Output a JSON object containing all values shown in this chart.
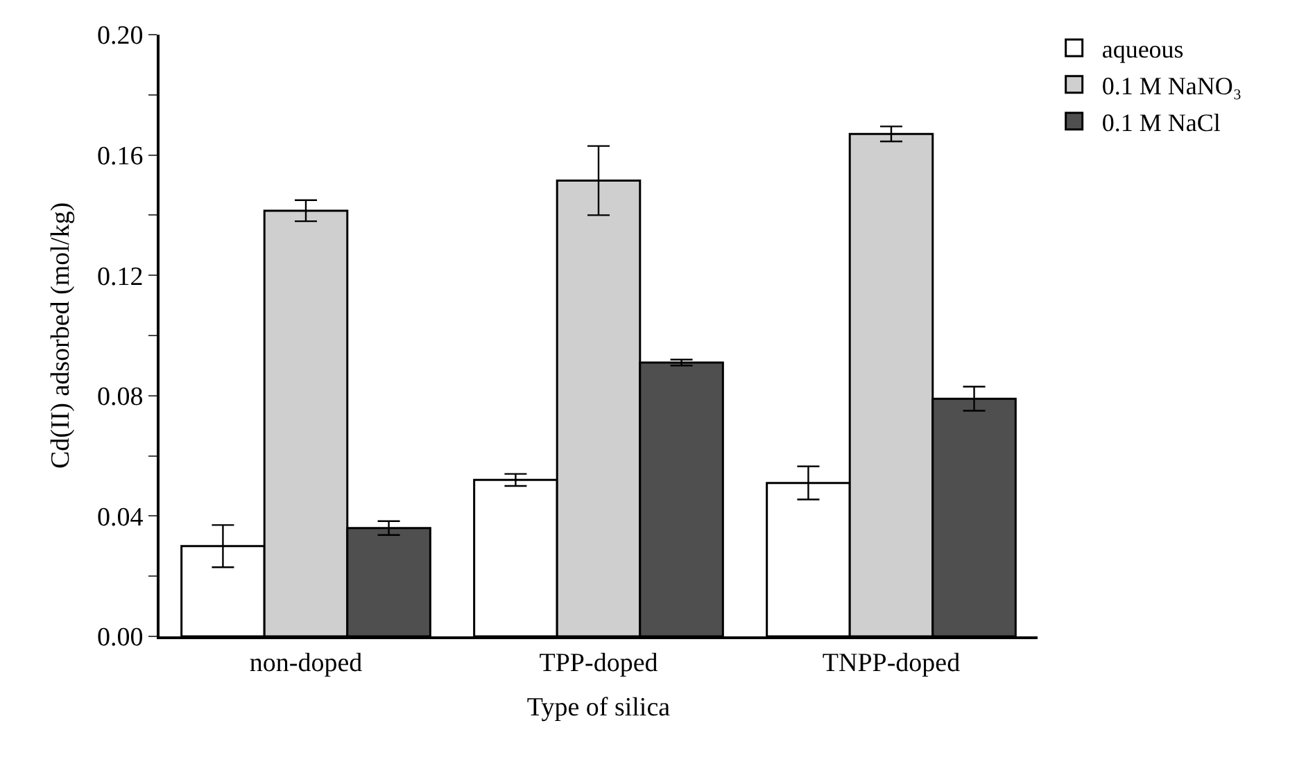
{
  "chart_data": {
    "type": "bar",
    "xlabel": "Type of silica",
    "ylabel": "Cd(II) adsorbed (mol/kg)",
    "categories": [
      "non-doped",
      "TPP-doped",
      "TNPP-doped"
    ],
    "series": [
      {
        "name": "aqueous",
        "color": "#ffffff",
        "values": [
          0.03,
          0.052,
          0.051
        ],
        "errors": [
          0.007,
          0.002,
          0.0055
        ]
      },
      {
        "name": "0.1 M NaNO₃",
        "color": "#cfcfcf",
        "values": [
          0.1415,
          0.1515,
          0.167
        ],
        "errors": [
          0.0035,
          0.0115,
          0.0025
        ]
      },
      {
        "name": "0.1 M NaCl",
        "color": "#4f4f4f",
        "values": [
          0.036,
          0.091,
          0.079
        ],
        "errors": [
          0.0023,
          0.001,
          0.004
        ]
      }
    ],
    "ylim": [
      0,
      0.2
    ],
    "yticks": [
      "0.00",
      {
        "value": 0.02,
        "label": null
      },
      0.04,
      {
        "value": 0.06,
        "label": null
      },
      0.08,
      {
        "value": 0.1,
        "label": null
      },
      0.12,
      {
        "value": 0.14,
        "label": null
      },
      0.16,
      {
        "value": 0.18,
        "label": null
      },
      {
        "value": 0.2,
        "label": "0.20"
      }
    ],
    "legend": "top right"
  }
}
